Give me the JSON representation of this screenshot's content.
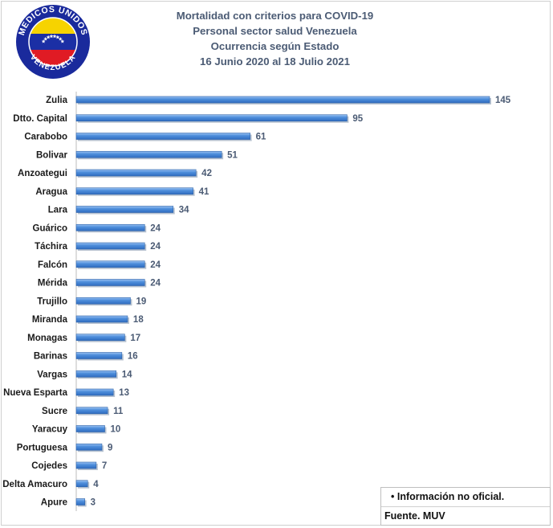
{
  "logo": {
    "arc_text": "MEDICOS UNIDOS",
    "country_text": "VENEZUELA",
    "colors": {
      "ring": "#1a2a9c",
      "yellow": "#f6d300",
      "blue": "#1b2fa5",
      "red": "#e01b24",
      "star": "#ffffff"
    }
  },
  "header": {
    "line1": "Mortalidad con criterios para COVID-19",
    "line2": "Personal sector salud Venezuela",
    "line3": "Ocurrencia según Estado",
    "line4": "16 Junio 2020 al 18 Julio 2021"
  },
  "chart_data": {
    "type": "bar",
    "orientation": "horizontal",
    "title": "Mortalidad con criterios para COVID-19",
    "categories": [
      "Zulia",
      "Dtto. Capital",
      "Carabobo",
      "Bolivar",
      "Anzoategui",
      "Aragua",
      "Lara",
      "Guárico",
      "Táchira",
      "Falcón",
      "Mérida",
      "Trujillo",
      "Miranda",
      "Monagas",
      "Barinas",
      "Vargas",
      "Nueva Esparta",
      "Sucre",
      "Yaracuy",
      "Portuguesa",
      "Cojedes",
      "Delta Amacuro",
      "Apure"
    ],
    "values": [
      145,
      95,
      61,
      51,
      42,
      41,
      34,
      24,
      24,
      24,
      24,
      19,
      18,
      17,
      16,
      14,
      13,
      11,
      10,
      9,
      7,
      4,
      3
    ],
    "xlim": [
      0,
      145
    ],
    "grid": false,
    "data_labels": true,
    "bar_color": "#4f8fdc"
  },
  "notes": {
    "line1": "Información no oficial.",
    "bullet": "•",
    "line2": "Fuente. MUV"
  }
}
